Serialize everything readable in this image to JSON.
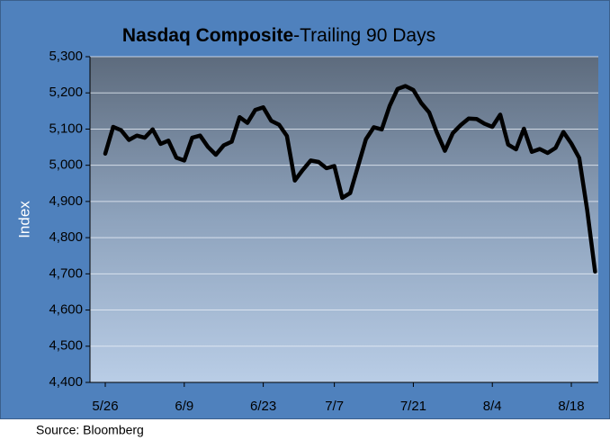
{
  "chart_data": {
    "type": "line",
    "title": "Nasdaq Composite",
    "subtitle": "-Trailing 90 Days",
    "y_label": "Index",
    "source": "Source: Bloomberg",
    "categories": [
      "5/26",
      null,
      null,
      null,
      null,
      null,
      null,
      null,
      null,
      null,
      "6/9",
      null,
      null,
      null,
      null,
      null,
      null,
      null,
      null,
      null,
      "6/23",
      null,
      null,
      null,
      null,
      null,
      null,
      null,
      null,
      "7/7",
      null,
      null,
      null,
      null,
      null,
      null,
      null,
      null,
      null,
      "7/21",
      null,
      null,
      null,
      null,
      null,
      null,
      null,
      null,
      null,
      "8/4",
      null,
      null,
      null,
      null,
      null,
      null,
      null,
      null,
      null,
      "8/18",
      null,
      null,
      null
    ],
    "series": [
      {
        "name": "Nasdaq Composite",
        "color": "#000000",
        "values": [
          5032,
          5106,
          5097,
          5070,
          5082,
          5076,
          5099,
          5059,
          5068,
          5021,
          5013,
          5076,
          5082,
          5051,
          5029,
          5055,
          5065,
          5133,
          5117,
          5153,
          5160,
          5123,
          5112,
          5081,
          4958,
          4987,
          5013,
          5009,
          4992,
          4998,
          4910,
          4923,
          4998,
          5072,
          5105,
          5099,
          5164,
          5211,
          5219,
          5208,
          5172,
          5146,
          5089,
          5040,
          5089,
          5111,
          5129,
          5128,
          5115,
          5106,
          5140,
          5057,
          5044,
          5101,
          5037,
          5045,
          5034,
          5048,
          5092,
          5060,
          5020,
          4877,
          4706
        ]
      }
    ],
    "ylim": [
      4400,
      5300
    ],
    "yticks": [
      {
        "value": 4400,
        "label": "4,400"
      },
      {
        "value": 4500,
        "label": "4,500"
      },
      {
        "value": 4600,
        "label": "4,600"
      },
      {
        "value": 4700,
        "label": "4,700"
      },
      {
        "value": 4800,
        "label": "4,800"
      },
      {
        "value": 4900,
        "label": "4,900"
      },
      {
        "value": 5000,
        "label": "5,000"
      },
      {
        "value": 5100,
        "label": "5,100"
      },
      {
        "value": 5200,
        "label": "5,200"
      },
      {
        "value": 5300,
        "label": "5,300"
      }
    ],
    "grid": true
  }
}
